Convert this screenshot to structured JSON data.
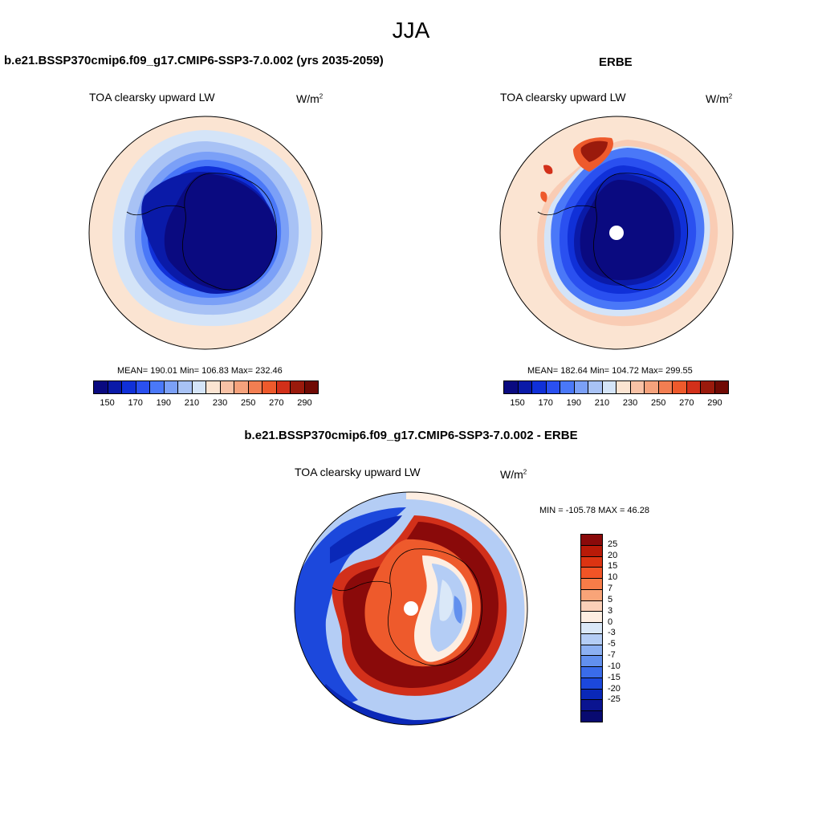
{
  "season": "JJA",
  "units_text": "W/m",
  "units_sup": "2",
  "panel_model": {
    "title": "b.e21.BSSP370cmip6.f09_g17.CMIP6-SSP3-7.0.002 (yrs 2035-2059)",
    "var_label": "TOA clearsky upward LW",
    "stats": "MEAN= 190.01  Min= 106.83  Max= 232.46"
  },
  "panel_obs": {
    "title": "ERBE",
    "var_label": "TOA clearsky upward LW",
    "stats": "MEAN= 182.64  Min= 104.72  Max= 299.55"
  },
  "panel_diff": {
    "title": "b.e21.BSSP370cmip6.f09_g17.CMIP6-SSP3-7.0.002 - ERBE",
    "var_label": "TOA clearsky upward LW",
    "stats": "MIN = -105.78 MAX =  46.28"
  },
  "abs_colorbar": {
    "colors": [
      "#0a0a80",
      "#0a1aa8",
      "#1030d8",
      "#2a50f0",
      "#4a78f8",
      "#7ba0f7",
      "#a8c2f5",
      "#d4e4f8",
      "#fbe4d2",
      "#f8c2a6",
      "#f5a27c",
      "#f27e52",
      "#ee5a2c",
      "#d2301a",
      "#9a1a0c",
      "#700a04"
    ],
    "ticks": [
      "150",
      "170",
      "190",
      "210",
      "230",
      "250",
      "270",
      "290"
    ]
  },
  "diff_colorbar": {
    "colors": [
      "#8a0a0a",
      "#b81a08",
      "#dc3412",
      "#f25426",
      "#f87c48",
      "#f9a478",
      "#fbd0b8",
      "#fdeee2",
      "#dae8f8",
      "#b4cdf5",
      "#8cb0f2",
      "#6290ee",
      "#3a6cea",
      "#1c48dc",
      "#0a28b8",
      "#0a1490",
      "#080a70"
    ],
    "ticks": [
      "25",
      "20",
      "15",
      "10",
      "7",
      "5",
      "3",
      "0",
      "-3",
      "-5",
      "-7",
      "-10",
      "-15",
      "-20",
      "-25"
    ]
  }
}
